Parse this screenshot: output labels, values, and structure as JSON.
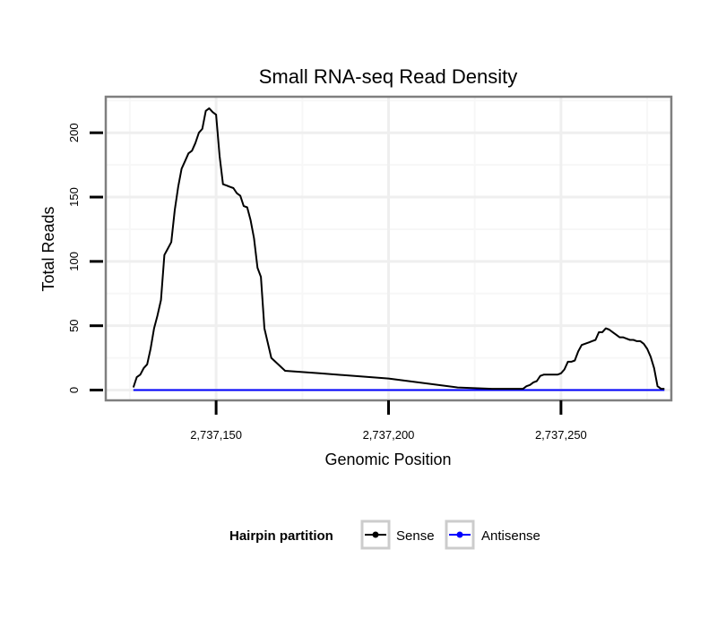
{
  "chart_data": {
    "type": "line",
    "title": "Small RNA-seq Read Density",
    "xlabel": "Genomic Position",
    "ylabel": "Total Reads",
    "xlim": [
      2737118,
      2737282
    ],
    "ylim": [
      -8,
      228
    ],
    "x_ticks": [
      2737150,
      2737200,
      2737250
    ],
    "x_tick_labels": [
      "2,737,150",
      "2,737,200",
      "2,737,250"
    ],
    "y_ticks": [
      0,
      50,
      100,
      150,
      200
    ],
    "y_tick_labels": [
      "0",
      "50",
      "100",
      "150",
      "200"
    ],
    "grid": true,
    "legend": {
      "title": "Hairpin partition",
      "position": "bottom",
      "entries": [
        {
          "label": "Sense",
          "color": "#000000"
        },
        {
          "label": "Antisense",
          "color": "#0000ff"
        }
      ]
    },
    "series": [
      {
        "name": "Sense",
        "color": "#000000",
        "x": [
          2737126,
          2737127,
          2737128,
          2737129,
          2737130,
          2737131,
          2737132,
          2737133,
          2737134,
          2737135,
          2737136,
          2737137,
          2737138,
          2737139,
          2737140,
          2737141,
          2737142,
          2737143,
          2737144,
          2737145,
          2737146,
          2737147,
          2737148,
          2737149,
          2737150,
          2737151,
          2737152,
          2737153,
          2737154,
          2737155,
          2737156,
          2737157,
          2737158,
          2737159,
          2737160,
          2737161,
          2737162,
          2737163,
          2737164,
          2737166,
          2737170,
          2737180,
          2737200,
          2737220,
          2737230,
          2737231,
          2737232,
          2737233,
          2737234,
          2737235,
          2737236,
          2737237,
          2737238,
          2737239,
          2737240,
          2737241,
          2737242,
          2737243,
          2737244,
          2737245,
          2737246,
          2737247,
          2737248,
          2737249,
          2737250,
          2737251,
          2737252,
          2737253,
          2737254,
          2737255,
          2737256,
          2737257,
          2737258,
          2737259,
          2737260,
          2737261,
          2737262,
          2737263,
          2737264,
          2737265,
          2737266,
          2737267,
          2737268,
          2737269,
          2737270,
          2737271,
          2737272,
          2737273,
          2737274,
          2737275,
          2737276,
          2737277,
          2737278,
          2737279,
          2737280
        ],
        "values": [
          2,
          10,
          12,
          17,
          20,
          32,
          48,
          58,
          70,
          105,
          110,
          115,
          140,
          158,
          172,
          178,
          184,
          186,
          192,
          200,
          203,
          217,
          219,
          216,
          214,
          182,
          160,
          159,
          158,
          157,
          153,
          151,
          143,
          142,
          132,
          118,
          95,
          88,
          48,
          25,
          15,
          13,
          9,
          2,
          1,
          1,
          1,
          1,
          1,
          1,
          1,
          1,
          1,
          1,
          3,
          4,
          6,
          7,
          11,
          12,
          12,
          12,
          12,
          12,
          13,
          16,
          22,
          22,
          23,
          30,
          35,
          36,
          37,
          38,
          39,
          45,
          45,
          48,
          47,
          45,
          43,
          41,
          41,
          40,
          39,
          39,
          38,
          38,
          36,
          32,
          26,
          17,
          3,
          1,
          1
        ]
      },
      {
        "name": "Antisense",
        "color": "#0000ff",
        "x": [
          2737126,
          2737280
        ],
        "values": [
          0,
          0
        ]
      }
    ]
  }
}
